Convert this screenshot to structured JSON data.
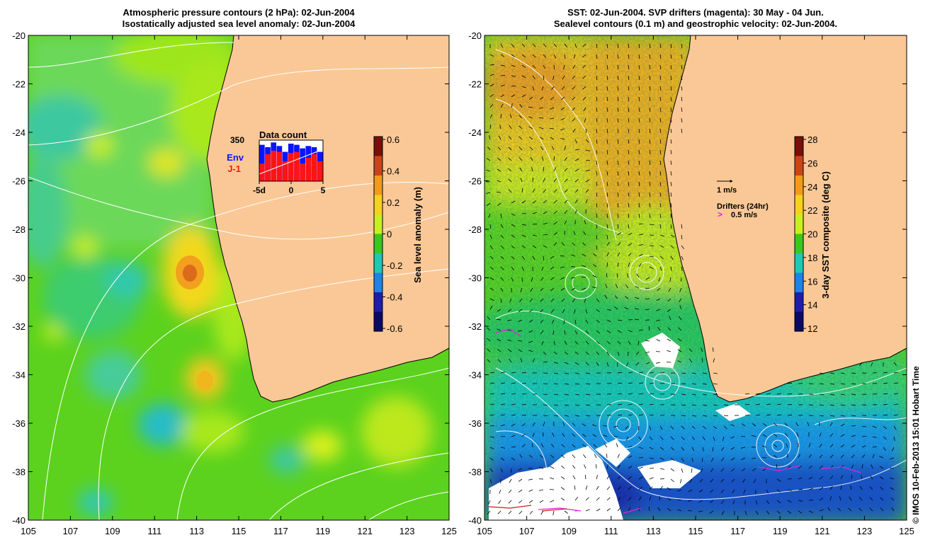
{
  "left_panel": {
    "title_line1": "Atmospheric pressure contours (2 hPa): 02-Jun-2004",
    "title_line2": "Isostatically adjusted sea level anomaly: 02-Jun-2004",
    "colorbar": {
      "label": "Sea level anomaly (m)",
      "ticks": [
        "0.6",
        "0.4",
        "0.2",
        "0",
        "-0.2",
        "-0.4",
        "-0.6"
      ],
      "colors": [
        "#7a0f0a",
        "#c8451a",
        "#f29a1e",
        "#f6d21a",
        "#c8f01e",
        "#3ac81e",
        "#1ec8b4",
        "#1e82e6",
        "#1e1eaa",
        "#0a0a64"
      ]
    },
    "data_count": {
      "title": "Data count",
      "max_label": "350",
      "env_label": "Env",
      "j1_label": "J-1",
      "x_ticks": [
        "-5d",
        "0",
        "5"
      ],
      "env_values": [
        310,
        290,
        330,
        300,
        250,
        320,
        310,
        280,
        300,
        290,
        250
      ],
      "j1_values": [
        150,
        230,
        260,
        250,
        170,
        240,
        250,
        150,
        200,
        230,
        170
      ],
      "max": 350,
      "env_color": "#0a14ff",
      "j1_color": "#ff1414"
    }
  },
  "right_panel": {
    "title_line1": "SST: 02-Jun-2004. SVP drifters (magenta): 30 May - 04 Jun.",
    "title_line2": "Sealevel contours (0.1 m) and geostrophic velocity: 02-Jun-2004.",
    "colorbar": {
      "label": "3-day SST composite (deg C)",
      "ticks": [
        "28",
        "26",
        "24",
        "22",
        "20",
        "18",
        "16",
        "14",
        "12"
      ],
      "colors": [
        "#7a0f0a",
        "#c8451a",
        "#f29a1e",
        "#f6d21a",
        "#c8f01e",
        "#3ac81e",
        "#1ec8b4",
        "#1e82e6",
        "#1e1eaa",
        "#0a0a64"
      ]
    },
    "legend_velocity": "1 m/s",
    "legend_drifters_title": "Drifters (24hr)",
    "legend_drifters_speed": "0.5 m/s",
    "drifter_color": "#e61ee6"
  },
  "axes": {
    "lat_ticks": [
      "-20",
      "-22",
      "-24",
      "-26",
      "-28",
      "-30",
      "-32",
      "-34",
      "-36",
      "-38",
      "-40"
    ],
    "lon_ticks": [
      "105",
      "107",
      "109",
      "111",
      "113",
      "115",
      "117",
      "119",
      "121",
      "123",
      "125"
    ],
    "lat_range": [
      -40,
      -20
    ],
    "lon_range": [
      105,
      125
    ]
  },
  "colors": {
    "land": "#fac896",
    "contour": "#ffffff"
  },
  "credit": "© IMOS 10-Feb-2013 15:01 Hobart Time"
}
